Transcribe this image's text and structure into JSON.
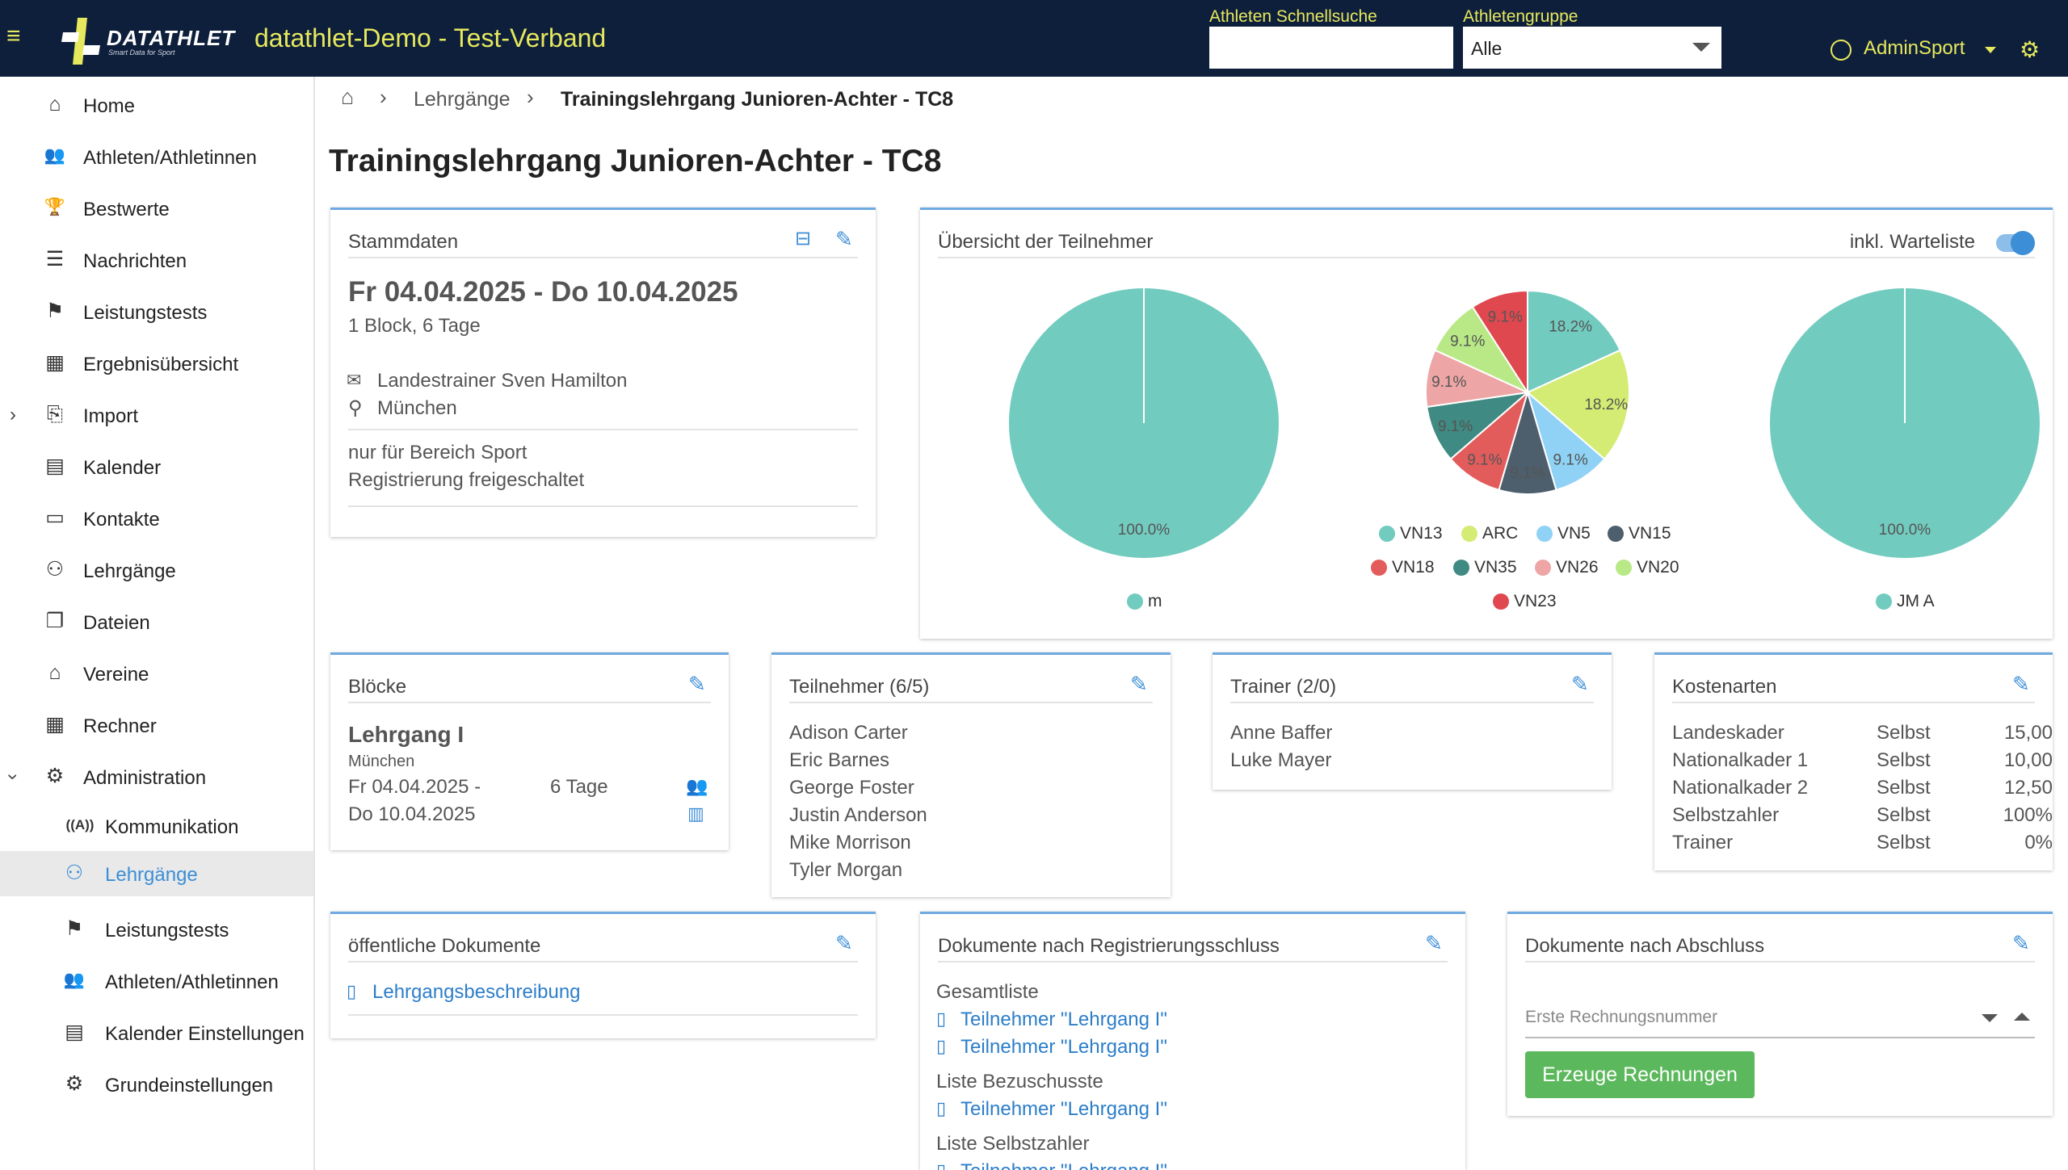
{
  "header": {
    "menu_icon": "≡",
    "logo_text": "DATATHLET",
    "logo_tagline": "Smart Data for Sport",
    "app_title": "datathlet-Demo - Test-Verband",
    "quicksearch_label": "Athleten Schnellsuche",
    "quicksearch_value": "",
    "group_label": "Athletengruppe",
    "group_value": "Alle",
    "user_name": "AdminSport",
    "accent_color": "#e6e85d",
    "bar_color": "#0e1f3b"
  },
  "sidebar": {
    "items": [
      {
        "label": "Home",
        "icon": "home-icon",
        "glyph": "⌂"
      },
      {
        "label": "Athleten/Athletinnen",
        "icon": "users-icon",
        "glyph": "👥"
      },
      {
        "label": "Bestwerte",
        "icon": "trophy-icon",
        "glyph": "🏆"
      },
      {
        "label": "Nachrichten",
        "icon": "list-icon",
        "glyph": "☰"
      },
      {
        "label": "Leistungstests",
        "icon": "flag-checkered-icon",
        "glyph": "⚑"
      },
      {
        "label": "Ergebnisübersicht",
        "icon": "table-icon",
        "glyph": "▦"
      },
      {
        "label": "Import",
        "icon": "import-icon",
        "glyph": "⎘"
      },
      {
        "label": "Kalender",
        "icon": "calendar-icon",
        "glyph": "▤"
      },
      {
        "label": "Kontakte",
        "icon": "contact-card-icon",
        "glyph": "▭"
      },
      {
        "label": "Lehrgänge",
        "icon": "graduate-icon",
        "glyph": "⚇"
      },
      {
        "label": "Dateien",
        "icon": "files-icon",
        "glyph": "❐"
      },
      {
        "label": "Vereine",
        "icon": "institution-icon",
        "glyph": "⌂"
      },
      {
        "label": "Rechner",
        "icon": "calculator-icon",
        "glyph": "▦"
      },
      {
        "label": "Administration",
        "icon": "cogs-icon",
        "glyph": "⚙"
      }
    ],
    "sub_items": [
      {
        "label": "Kommunikation",
        "icon": "broadcast-icon",
        "glyph": "((A))"
      },
      {
        "label": "Lehrgänge",
        "icon": "graduate-icon",
        "glyph": "⚇"
      },
      {
        "label": "Leistungstests",
        "icon": "flag-checkered-icon",
        "glyph": "⚑"
      },
      {
        "label": "Athleten/Athletinnen",
        "icon": "users-icon",
        "glyph": "👥"
      },
      {
        "label": "Kalender Einstellungen",
        "icon": "calendar-icon",
        "glyph": "▤"
      },
      {
        "label": "Grundeinstellungen",
        "icon": "cogs-icon",
        "glyph": "⚙"
      }
    ],
    "active_color": "#3c8ed6"
  },
  "breadcrumb": {
    "level1": "Lehrgänge",
    "current": "Trainingslehrgang Junioren-Achter - TC8"
  },
  "page_title": "Trainingslehrgang Junioren-Achter - TC8",
  "stammdaten": {
    "title": "Stammdaten",
    "dates": "Fr 04.04.2025 - Do 10.04.2025",
    "blocks": "1 Block, 6 Tage",
    "trainer": "Landestrainer Sven Hamilton",
    "location": "München",
    "note1": "nur für Bereich Sport",
    "note2": "Registrierung freigeschaltet"
  },
  "overview": {
    "title": "Übersicht der Teilnehmer",
    "toggle_label": "inkl. Warteliste",
    "toggle_on": true
  },
  "chart_data": [
    {
      "type": "pie",
      "categories": [
        "m"
      ],
      "values": [
        100.0
      ],
      "labels": [
        "100.0%"
      ],
      "colors": [
        "#72cbbf"
      ]
    },
    {
      "type": "pie",
      "categories": [
        "VN13",
        "ARC",
        "VN5",
        "VN15",
        "VN18",
        "VN35",
        "VN26",
        "VN20",
        "VN23"
      ],
      "values": [
        18.2,
        18.2,
        9.1,
        9.1,
        9.1,
        9.1,
        9.1,
        9.1,
        9.1
      ],
      "labels": [
        "18.2%",
        "18.2%",
        "9.1%",
        "9.1%",
        "9.1%",
        "9.1%",
        "9.1%",
        "9.1%",
        "9.1%"
      ],
      "colors": [
        "#72cbbf",
        "#d4ec73",
        "#8fd2f5",
        "#4d5e6c",
        "#e35c5c",
        "#3f8a82",
        "#eda5a5",
        "#b8e986",
        "#e0484f"
      ]
    },
    {
      "type": "pie",
      "categories": [
        "JM A"
      ],
      "values": [
        100.0
      ],
      "labels": [
        "100.0%"
      ],
      "colors": [
        "#72cbbf"
      ]
    }
  ],
  "bloecke": {
    "title": "Blöcke",
    "name": "Lehrgang I",
    "location": "München",
    "date_start": "Fr 04.04.2025 -",
    "date_end": "Do 10.04.2025",
    "duration": "6 Tage"
  },
  "teilnehmer": {
    "title": "Teilnehmer (6/5)",
    "names": [
      "Adison Carter",
      "Eric Barnes",
      "George Foster",
      "Justin Anderson",
      "Mike Morrison",
      "Tyler Morgan"
    ]
  },
  "trainer": {
    "title": "Trainer (2/0)",
    "names": [
      "Anne Baffer",
      "Luke Mayer"
    ]
  },
  "kostenarten": {
    "title": "Kostenarten",
    "rows": [
      {
        "name": "Landeskader",
        "type": "Selbst",
        "value": "15,00"
      },
      {
        "name": "Nationalkader 1",
        "type": "Selbst",
        "value": "10,00"
      },
      {
        "name": "Nationalkader 2",
        "type": "Selbst",
        "value": "12,50"
      },
      {
        "name": "Selbstzahler",
        "type": "Selbst",
        "value": "100%"
      },
      {
        "name": "Trainer",
        "type": "Selbst",
        "value": "0%"
      }
    ]
  },
  "docs_public": {
    "title": "öffentliche Dokumente",
    "link": "Lehrgangsbeschreibung"
  },
  "docs_registration": {
    "title": "Dokumente nach Registrierungsschluss",
    "group1": "Gesamtliste",
    "link1": "Teilnehmer \"Lehrgang I\"",
    "link2": "Teilnehmer \"Lehrgang I\"",
    "group2": "Liste Bezuschusste",
    "link3": "Teilnehmer \"Lehrgang I\"",
    "group3": "Liste Selbstzahler",
    "link4": "Teilnehmer \"Lehrgang I\""
  },
  "docs_final": {
    "title": "Dokumente nach Abschluss",
    "invoice_placeholder": "Erste Rechnungsnummer",
    "button": "Erzeuge Rechnungen"
  }
}
